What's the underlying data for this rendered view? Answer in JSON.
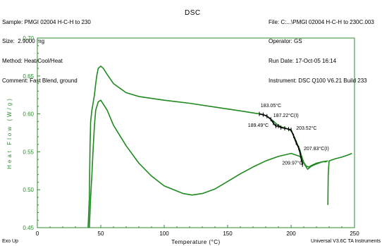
{
  "header": {
    "left_lines": [
      "Sample: PMGI 02004 H-C-H to 230",
      "Size:  2.9000 mg",
      "Method: Heat/Cool/Heat",
      "Comment: Fast Blend, ground"
    ],
    "center_title": "DSC",
    "right_lines": [
      "File: C:...\\PMGI 02004 H-C-H to 230C.003",
      "Operator: GS",
      "Run Date: 17-Oct-05 16:14",
      "Instrument: DSC Q100 V6.21 Build 233"
    ]
  },
  "footer": {
    "left": "Exo Up",
    "right": "Universal V3.6C TA Instruments"
  },
  "chart_data": {
    "type": "line",
    "xlabel": "Temperature (°C)",
    "ylabel": "Heat Flow (W/g)",
    "xlim": [
      0,
      250
    ],
    "ylim": [
      0.45,
      0.7
    ],
    "x_ticks": [
      "0",
      "50",
      "100",
      "150",
      "200",
      "250"
    ],
    "y_ticks": [
      "0.45",
      "0.50",
      "0.55",
      "0.60",
      "0.65",
      "0.70"
    ],
    "grid": false,
    "line_color": "#1f8a1f",
    "axis_color": "#2e8b2e",
    "series": [
      {
        "x": [
          40,
          41,
          41.5,
          42,
          43,
          44,
          45,
          46,
          47,
          48,
          50,
          52,
          55,
          60,
          70,
          80,
          100,
          120,
          140,
          160,
          175,
          180,
          185,
          189,
          192,
          196,
          200,
          203,
          205,
          207,
          208,
          210,
          212,
          214,
          216,
          220,
          225,
          229
        ],
        "y": [
          0.45,
          0.49,
          0.555,
          0.59,
          0.605,
          0.615,
          0.625,
          0.64,
          0.652,
          0.66,
          0.663,
          0.66,
          0.652,
          0.64,
          0.628,
          0.623,
          0.618,
          0.614,
          0.609,
          0.604,
          0.6,
          0.598,
          0.592,
          0.586,
          0.583,
          0.581,
          0.578,
          0.568,
          0.56,
          0.552,
          0.546,
          0.536,
          0.531,
          0.53,
          0.532,
          0.535,
          0.537,
          0.538
        ]
      },
      {
        "x": [
          229,
          229.3,
          229.6,
          230,
          235,
          240,
          245,
          248
        ],
        "y": [
          0.48,
          0.52,
          0.53,
          0.538,
          0.541,
          0.543,
          0.546,
          0.548
        ]
      },
      {
        "x": [
          228,
          225,
          220,
          216,
          213,
          210,
          207,
          200,
          190,
          180,
          170,
          160,
          150,
          140,
          130,
          122,
          115,
          100,
          90,
          80,
          70,
          60,
          55,
          50,
          48,
          46,
          45,
          44,
          43,
          42,
          41
        ],
        "y": [
          0.537,
          0.537,
          0.534,
          0.531,
          0.527,
          0.535,
          0.544,
          0.548,
          0.544,
          0.538,
          0.53,
          0.521,
          0.511,
          0.501,
          0.495,
          0.493,
          0.495,
          0.505,
          0.518,
          0.535,
          0.558,
          0.585,
          0.605,
          0.618,
          0.616,
          0.605,
          0.585,
          0.555,
          0.52,
          0.49,
          0.45
        ]
      }
    ],
    "annotation_marks": {
      "x": [
        175,
        178,
        181,
        184,
        186,
        188,
        190,
        192,
        195,
        198,
        200,
        202,
        204,
        206,
        207,
        208,
        209
      ],
      "y": [
        0.6,
        0.599,
        0.597,
        0.593,
        0.588,
        0.584,
        0.584,
        0.582,
        0.581,
        0.58,
        0.579,
        0.571,
        0.562,
        0.555,
        0.549,
        0.541,
        0.533
      ]
    },
    "annotations": [
      {
        "text": "183.05°C",
        "x": 176,
        "y": 0.609
      },
      {
        "text": "187.22°C(I)",
        "x": 186,
        "y": 0.596
      },
      {
        "text": "189.49°C",
        "x": 166,
        "y": 0.583
      },
      {
        "text": "203.52°C",
        "x": 204,
        "y": 0.579
      },
      {
        "text": "207.83°C(I)",
        "x": 210,
        "y": 0.552
      },
      {
        "text": "209.97°C",
        "x": 193,
        "y": 0.533
      }
    ]
  }
}
